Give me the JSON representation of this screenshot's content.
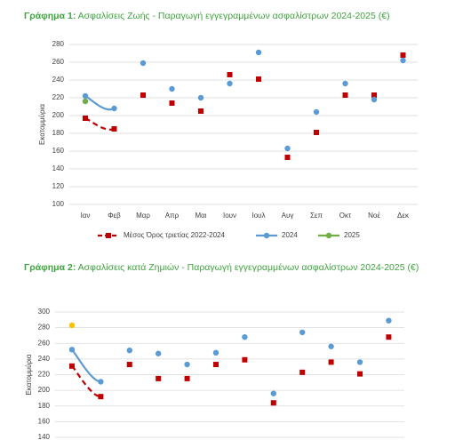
{
  "chart_data": [
    {
      "type": "line",
      "title_label": "Γράφημα 1:",
      "title": "Ασφαλίσεις Ζωής - Παραγωγή εγγεγραμμένων ασφαλίστρων 2024-2025 (€)",
      "ylabel": "Εκατομμύρια",
      "categories": [
        "Ιαν",
        "Φεβ",
        "Μαρ",
        "Απρ",
        "Μαι",
        "Ιουν",
        "Ιουλ",
        "Αυγ",
        "Σεπ",
        "Οκτ",
        "Νοέ",
        "Δεκ"
      ],
      "series": [
        {
          "name": "Μέσος Όρος τριετίας 2022-2024",
          "color": "#c00000",
          "dashed": true,
          "marker": "square",
          "values": [
            197,
            185,
            223,
            214,
            205,
            246,
            241,
            153,
            181,
            223,
            223,
            268
          ]
        },
        {
          "name": "2024",
          "color": "#5b9bd5",
          "marker": "circle",
          "values": [
            222,
            208,
            259,
            230,
            220,
            236,
            271,
            163,
            204,
            236,
            218,
            262
          ]
        },
        {
          "name": "2025",
          "color": "#70ad47",
          "marker": "circle",
          "values": [
            216,
            null,
            null,
            null,
            null,
            null,
            null,
            null,
            null,
            null,
            null,
            null
          ]
        }
      ],
      "ylim": [
        100,
        280
      ],
      "yticks": [
        100,
        120,
        140,
        160,
        180,
        200,
        220,
        240,
        260,
        280
      ],
      "grid": true,
      "legend": "bottom"
    },
    {
      "type": "line",
      "title_label": "Γράφημα 2:",
      "title": "Ασφαλίσεις κατά Ζημιών - Παραγωγή εγγεγραμμένων ασφαλίστρων 2024-2025 (€)",
      "ylabel": "Εκατομμύρια",
      "series": [
        {
          "color": "#c00000",
          "dashed": true,
          "marker": "square",
          "values": [
            231,
            192,
            233,
            215,
            215,
            233,
            239,
            184,
            223,
            236,
            221,
            268
          ]
        },
        {
          "color": "#5b9bd5",
          "marker": "circle",
          "values": [
            252,
            211,
            251,
            247,
            233,
            248,
            268,
            196,
            274,
            256,
            236,
            289
          ]
        },
        {
          "color": "#ffc000",
          "marker": "circle",
          "values": [
            283,
            null,
            null,
            null,
            null,
            null,
            null,
            null,
            null,
            null,
            null,
            null
          ]
        }
      ],
      "ylim": [
        140,
        300
      ],
      "yticks": [
        140,
        160,
        180,
        200,
        220,
        240,
        260,
        280,
        300
      ],
      "grid": true
    }
  ]
}
